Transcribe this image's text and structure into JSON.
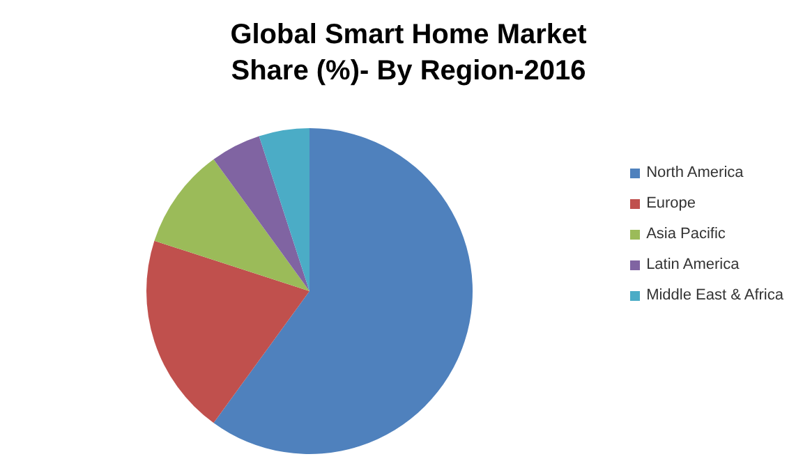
{
  "chart_data": {
    "type": "pie",
    "title": "Global Smart Home Market Share (%)- By Region-2016",
    "categories": [
      "North America",
      "Europe",
      "Asia Pacific",
      "Latin America",
      "Middle East & Africa"
    ],
    "values": [
      60,
      20,
      10,
      5,
      5
    ],
    "colors": [
      "#4f81bd",
      "#c0504d",
      "#9bbb59",
      "#8064a2",
      "#4bacc6"
    ],
    "legend": "right"
  }
}
